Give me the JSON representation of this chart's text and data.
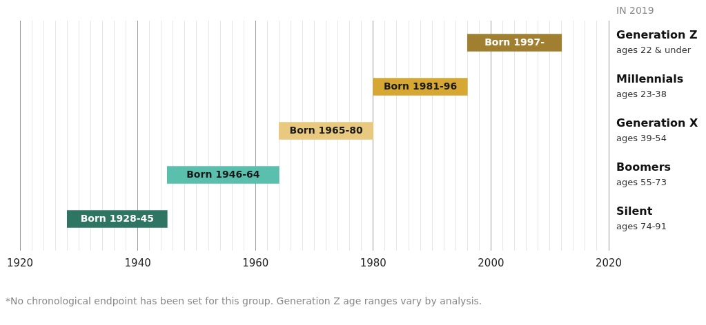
{
  "chart_data": {
    "type": "bar",
    "orientation": "horizontal",
    "categories": [
      "Generation Z\nages 22 & under",
      "Millennials\nages 23-38",
      "Generation X\nages 39-54",
      "Boomers\nages 55-73",
      "Silent\nages 74-91"
    ],
    "base": [
      1996,
      1980,
      1964,
      1945,
      1928
    ],
    "values": [
      16,
      16,
      16,
      19,
      17
    ],
    "colors": [
      "#a08030",
      "#d6a733",
      "#e8c97f",
      "#5bbfae",
      "#2f7563"
    ],
    "value_labels": [
      "Born 1997-",
      "Born 1981-96",
      "Born 1965-80",
      "Born 1946-64",
      "Born 1928-45"
    ],
    "xlim": [
      1920,
      2020
    ],
    "xticks": [
      1920,
      {
        "value": 1922,
        "label": null
      },
      {
        "value": 1924,
        "label": null
      },
      {
        "value": 1926,
        "label": null
      },
      {
        "value": 1928,
        "label": null
      },
      {
        "value": 1930,
        "label": null
      },
      {
        "value": 1932,
        "label": null
      },
      {
        "value": 1934,
        "label": null
      },
      {
        "value": 1936,
        "label": null
      },
      {
        "value": 1938,
        "label": null
      },
      1940,
      {
        "value": 1942,
        "label": null
      },
      {
        "value": 1944,
        "label": null
      },
      {
        "value": 1946,
        "label": null
      },
      {
        "value": 1948,
        "label": null
      },
      {
        "value": 1950,
        "label": null
      },
      {
        "value": 1952,
        "label": null
      },
      {
        "value": 1954,
        "label": null
      },
      {
        "value": 1956,
        "label": null
      },
      {
        "value": 1958,
        "label": null
      },
      1960,
      {
        "value": 1962,
        "label": null
      },
      {
        "value": 1964,
        "label": null
      },
      {
        "value": 1966,
        "label": null
      },
      {
        "value": 1968,
        "label": null
      },
      {
        "value": 1970,
        "label": null
      },
      {
        "value": 1972,
        "label": null
      },
      {
        "value": 1974,
        "label": null
      },
      {
        "value": 1976,
        "label": null
      },
      {
        "value": 1978,
        "label": null
      },
      1980,
      {
        "value": 1982,
        "label": null
      },
      {
        "value": 1984,
        "label": null
      },
      {
        "value": 1986,
        "label": null
      },
      {
        "value": 1988,
        "label": null
      },
      {
        "value": 1990,
        "label": null
      },
      {
        "value": 1992,
        "label": null
      },
      {
        "value": 1994,
        "label": null
      },
      {
        "value": 1996,
        "label": null
      },
      {
        "value": 1998,
        "label": null
      },
      2000,
      {
        "value": 2002,
        "label": null
      },
      {
        "value": 2004,
        "label": null
      },
      {
        "value": 2006,
        "label": null
      },
      {
        "value": 2008,
        "label": null
      },
      {
        "value": 2010,
        "label": null
      },
      {
        "value": 2012,
        "label": null
      },
      {
        "value": 2014,
        "label": null
      },
      {
        "value": 2016,
        "label": null
      },
      {
        "value": 2018,
        "label": null
      },
      2020
    ],
    "grid": "x",
    "legend": false,
    "annotations": [
      "IN 2019",
      "*No chronological endpoint has been set for this group. Generation Z age ranges vary by analysis."
    ]
  }
}
